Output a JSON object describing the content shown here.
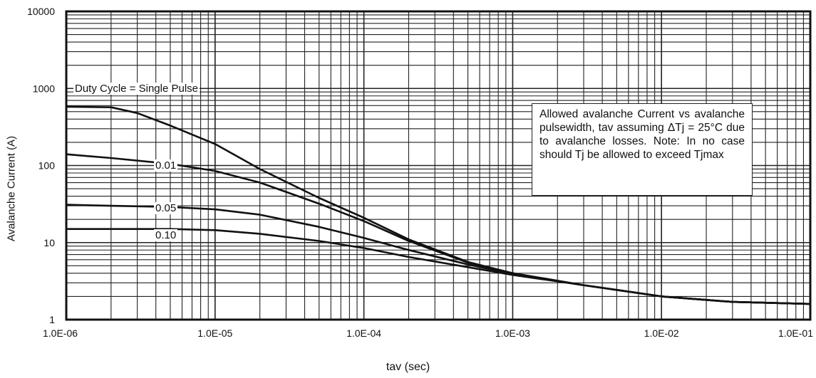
{
  "chart_data": {
    "type": "line",
    "xlabel": "tav (sec)",
    "ylabel": "Avalanche Current (A)",
    "xscale": "log",
    "yscale": "log",
    "xlim": [
      1e-06,
      0.1
    ],
    "ylim": [
      1,
      10000
    ],
    "grid": true,
    "xtick_labels": [
      "1.0E-06",
      "1.0E-05",
      "1.0E-04",
      "1.0E-03",
      "1.0E-02",
      "1.0E-01"
    ],
    "ytick_labels": [
      "10000",
      "1000",
      "100",
      "10",
      "1"
    ],
    "annotation": "Allowed avalanche Current vs avalanche pulsewidth, tav assuming ΔTj = 25°C due to avalanche losses. Note: In no case should Tj be allowed to exceed Tjmax",
    "series": [
      {
        "name": "Duty Cycle = Single Pulse",
        "x": [
          1e-06,
          2e-06,
          3e-06,
          5e-06,
          1e-05,
          2e-05,
          5e-05,
          0.0001,
          0.0002,
          0.0005,
          0.001,
          0.003,
          0.01,
          0.03,
          0.1
        ],
        "y": [
          580,
          570,
          480,
          330,
          190,
          90,
          38,
          21,
          11,
          5.6,
          4.0,
          2.8,
          2.0,
          1.7,
          1.6
        ]
      },
      {
        "name": "0.01",
        "x": [
          1e-06,
          2e-06,
          5e-06,
          1e-05,
          2e-05,
          5e-05,
          0.0001,
          0.0002,
          0.0005,
          0.001,
          0.003,
          0.01,
          0.03,
          0.1
        ],
        "y": [
          140,
          125,
          105,
          85,
          60,
          32,
          19,
          10.5,
          5.5,
          4.0,
          2.8,
          2.0,
          1.7,
          1.6
        ]
      },
      {
        "name": "0.05",
        "x": [
          1e-06,
          2e-06,
          5e-06,
          1e-05,
          2e-05,
          5e-05,
          0.0001,
          0.0002,
          0.0005,
          0.001,
          0.003,
          0.01,
          0.03,
          0.1
        ],
        "y": [
          31,
          30,
          29,
          27,
          23,
          16,
          11.5,
          8,
          5.2,
          3.9,
          2.8,
          2.0,
          1.7,
          1.6
        ]
      },
      {
        "name": "0.10",
        "x": [
          1e-06,
          2e-06,
          5e-06,
          1e-05,
          2e-05,
          5e-05,
          0.0001,
          0.0002,
          0.0005,
          0.001,
          0.003,
          0.01,
          0.03,
          0.1
        ],
        "y": [
          15,
          15,
          15,
          14.5,
          13,
          10.5,
          8.5,
          6.5,
          4.8,
          3.8,
          2.8,
          2.0,
          1.7,
          1.6
        ]
      }
    ]
  }
}
